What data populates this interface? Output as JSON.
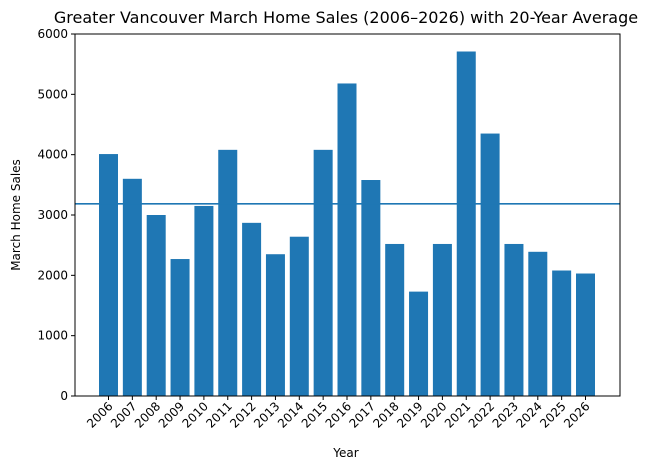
{
  "chart_data": {
    "type": "bar",
    "title": "Greater Vancouver March Home Sales (2006–2026) with 20-Year Average",
    "xlabel": "Year",
    "ylabel": "March Home Sales",
    "categories": [
      "2006",
      "2007",
      "2008",
      "2009",
      "2010",
      "2011",
      "2012",
      "2013",
      "2014",
      "2015",
      "2016",
      "2017",
      "2018",
      "2019",
      "2020",
      "2021",
      "2022",
      "2023",
      "2024",
      "2025",
      "2026"
    ],
    "values": [
      4010,
      3600,
      3000,
      2270,
      3150,
      4080,
      2870,
      2350,
      2640,
      4080,
      5180,
      3580,
      2520,
      1730,
      2520,
      5710,
      4350,
      2520,
      2390,
      2080,
      2030
    ],
    "average_line": 3185,
    "ylim": [
      0,
      6000
    ],
    "yticks": [
      0,
      1000,
      2000,
      3000,
      4000,
      5000,
      6000
    ],
    "grid": false,
    "colors": {
      "bar": "#1f77b4",
      "average_line": "#1f77b4"
    }
  }
}
